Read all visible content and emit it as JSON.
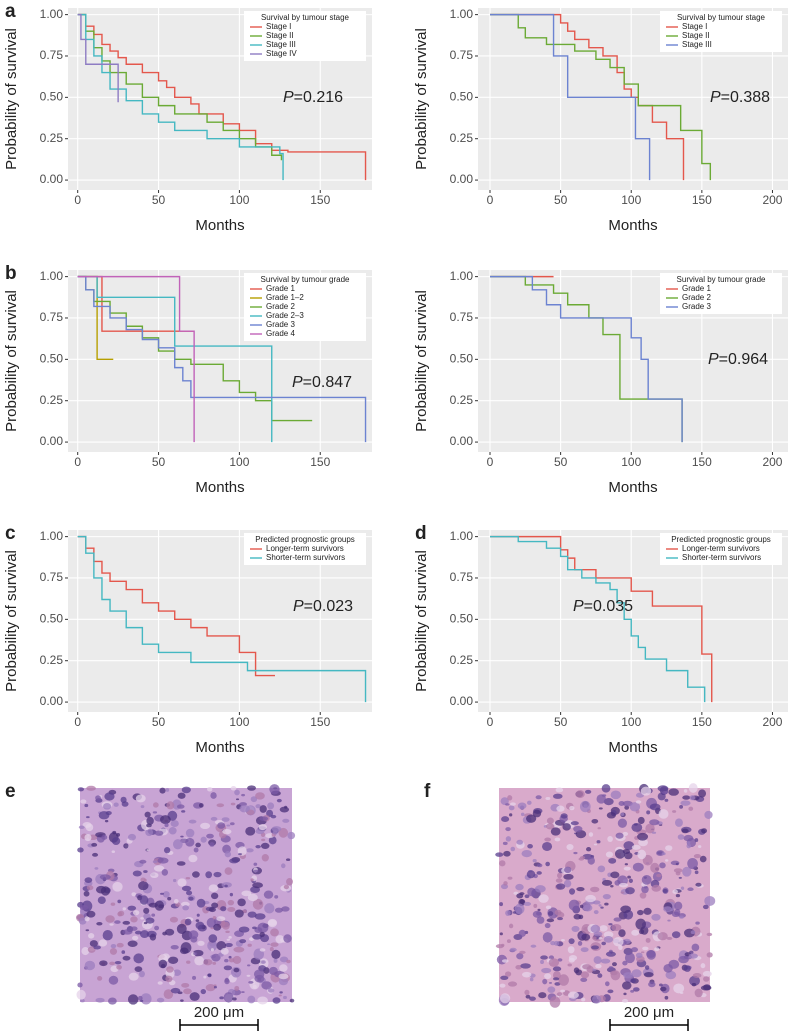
{
  "chart_data": [
    {
      "type": "line",
      "panel_label": "a",
      "legend_title": "Survival by tumour stage",
      "legend": "upper right",
      "x_label": "Months",
      "y_label": "Probability of survival",
      "annotation": {
        "symbol": "P",
        "text": "=0.216"
      },
      "xlim": [
        -6,
        182
      ],
      "ylim": [
        -0.06,
        1.04
      ],
      "xticks": [
        0,
        50,
        100,
        150
      ],
      "yticks": [
        {
          "value": 0,
          "label": "0.00"
        },
        {
          "value": 0.25,
          "label": "0.25"
        },
        {
          "value": 0.5,
          "label": "0.50"
        },
        {
          "value": 0.75,
          "label": "0.75"
        },
        {
          "value": 1,
          "label": "1.00"
        }
      ],
      "grid": true,
      "series": [
        {
          "name": "Stage I",
          "color": "#E4574C",
          "x": [
            0,
            5,
            10,
            15,
            20,
            25,
            30,
            40,
            50,
            55,
            60,
            70,
            75,
            90,
            100,
            110,
            120,
            130,
            178
          ],
          "values": [
            1,
            0.93,
            0.88,
            0.82,
            0.78,
            0.74,
            0.7,
            0.65,
            0.6,
            0.56,
            0.5,
            0.46,
            0.4,
            0.34,
            0.3,
            0.22,
            0.18,
            0.17,
            0
          ]
        },
        {
          "name": "Stage II",
          "color": "#6BAA35",
          "x": [
            0,
            5,
            10,
            15,
            20,
            30,
            40,
            50,
            60,
            70,
            80,
            90,
            100,
            110,
            120,
            126
          ],
          "values": [
            1,
            0.9,
            0.8,
            0.72,
            0.65,
            0.58,
            0.5,
            0.45,
            0.4,
            0.4,
            0.35,
            0.3,
            0.25,
            0.2,
            0.15,
            0.12
          ]
        },
        {
          "name": "Stage III",
          "color": "#45B8C2",
          "x": [
            0,
            5,
            10,
            15,
            20,
            30,
            40,
            50,
            60,
            70,
            80,
            100,
            110,
            125,
            127
          ],
          "values": [
            1,
            0.85,
            0.75,
            0.65,
            0.55,
            0.48,
            0.4,
            0.35,
            0.3,
            0.3,
            0.25,
            0.2,
            0.2,
            0.16,
            0
          ]
        },
        {
          "name": "Stage IV",
          "color": "#8E7CC3",
          "x": [
            0,
            2,
            5,
            20,
            25
          ],
          "values": [
            1,
            0.85,
            0.7,
            0.7,
            0.47
          ]
        }
      ]
    },
    {
      "type": "line",
      "legend_title": "Survival by tumour stage",
      "legend": "upper right",
      "x_label": "Months",
      "y_label": "Probability of survival",
      "annotation": {
        "symbol": "P",
        "text": "=0.388"
      },
      "xlim": [
        -8.5,
        211
      ],
      "ylim": [
        -0.06,
        1.04
      ],
      "xticks": [
        0,
        50,
        100,
        150,
        200
      ],
      "yticks": [
        {
          "value": 0,
          "label": "0.00"
        },
        {
          "value": 0.25,
          "label": "0.25"
        },
        {
          "value": 0.5,
          "label": "0.50"
        },
        {
          "value": 0.75,
          "label": "0.75"
        },
        {
          "value": 1,
          "label": "1.00"
        }
      ],
      "grid": true,
      "series": [
        {
          "name": "Stage I",
          "color": "#E4574C",
          "x": [
            0,
            50,
            55,
            60,
            70,
            80,
            90,
            95,
            100,
            105,
            115,
            125,
            137
          ],
          "values": [
            1,
            0.95,
            0.9,
            0.85,
            0.8,
            0.75,
            0.65,
            0.55,
            0.5,
            0.45,
            0.35,
            0.25,
            0
          ]
        },
        {
          "name": "Stage II",
          "color": "#6BAA35",
          "x": [
            0,
            20,
            25,
            35,
            40,
            50,
            60,
            75,
            85,
            95,
            105,
            125,
            135,
            150,
            156
          ],
          "values": [
            1,
            0.92,
            0.86,
            0.86,
            0.82,
            0.82,
            0.78,
            0.73,
            0.68,
            0.58,
            0.45,
            0.45,
            0.3,
            0.1,
            0
          ]
        },
        {
          "name": "Stage III",
          "color": "#6C83D1",
          "x": [
            0,
            45,
            55,
            100,
            103,
            113
          ],
          "values": [
            1,
            0.75,
            0.5,
            0.5,
            0.25,
            0
          ]
        }
      ]
    },
    {
      "type": "line",
      "panel_label": "b",
      "legend_title": "Survival by tumour grade",
      "legend": "upper right",
      "x_label": "Months",
      "y_label": "Probability of survival",
      "annotation": {
        "symbol": "P",
        "text": "=0.847"
      },
      "xlim": [
        -6,
        182
      ],
      "ylim": [
        -0.06,
        1.04
      ],
      "xticks": [
        0,
        50,
        100,
        150
      ],
      "yticks": [
        {
          "value": 0,
          "label": "0.00"
        },
        {
          "value": 0.25,
          "label": "0.25"
        },
        {
          "value": 0.5,
          "label": "0.50"
        },
        {
          "value": 0.75,
          "label": "0.75"
        },
        {
          "value": 1,
          "label": "1.00"
        }
      ],
      "grid": true,
      "series": [
        {
          "name": "Grade 1",
          "color": "#E4574C",
          "x": [
            0,
            15,
            72
          ],
          "values": [
            1,
            0.67,
            0.67
          ]
        },
        {
          "name": "Grade 1–2",
          "color": "#B79F00",
          "x": [
            0,
            12,
            22
          ],
          "values": [
            1,
            0.5,
            0.5
          ]
        },
        {
          "name": "Grade 2",
          "color": "#6BAA35",
          "x": [
            0,
            5,
            10,
            20,
            30,
            40,
            50,
            60,
            70,
            90,
            100,
            110,
            120,
            145
          ],
          "values": [
            1,
            0.92,
            0.85,
            0.78,
            0.7,
            0.63,
            0.55,
            0.5,
            0.47,
            0.37,
            0.3,
            0.25,
            0.13,
            0.13
          ]
        },
        {
          "name": "Grade 2–3",
          "color": "#45B8C2",
          "x": [
            0,
            12,
            20,
            60,
            120
          ],
          "values": [
            1,
            0.875,
            0.875,
            0.58,
            0
          ]
        },
        {
          "name": "Grade 3",
          "color": "#6C83D1",
          "x": [
            0,
            5,
            10,
            20,
            30,
            40,
            50,
            60,
            65,
            70,
            178
          ],
          "values": [
            1,
            0.92,
            0.82,
            0.75,
            0.68,
            0.62,
            0.57,
            0.45,
            0.37,
            0.27,
            0
          ]
        },
        {
          "name": "Grade 4",
          "color": "#C163B9",
          "x": [
            0,
            63,
            72
          ],
          "values": [
            1,
            0.67,
            0
          ]
        }
      ]
    },
    {
      "type": "line",
      "legend_title": "Survival by tumour grade",
      "legend": "upper right",
      "x_label": "Months",
      "y_label": "Probability of survival",
      "annotation": {
        "symbol": "P",
        "text": "=0.964"
      },
      "xlim": [
        -8.5,
        211
      ],
      "ylim": [
        -0.06,
        1.04
      ],
      "xticks": [
        0,
        50,
        100,
        150,
        200
      ],
      "yticks": [
        {
          "value": 0,
          "label": "0.00"
        },
        {
          "value": 0.25,
          "label": "0.25"
        },
        {
          "value": 0.5,
          "label": "0.50"
        },
        {
          "value": 0.75,
          "label": "0.75"
        },
        {
          "value": 1,
          "label": "1.00"
        }
      ],
      "grid": true,
      "series": [
        {
          "name": "Grade 1",
          "color": "#E4574C",
          "x": [
            0,
            45
          ],
          "values": [
            1,
            1
          ]
        },
        {
          "name": "Grade 2",
          "color": "#6BAA35",
          "x": [
            0,
            25,
            45,
            55,
            70,
            80,
            92,
            130,
            136
          ],
          "values": [
            1,
            0.95,
            0.9,
            0.83,
            0.75,
            0.65,
            0.26,
            0.26,
            0
          ]
        },
        {
          "name": "Grade 3",
          "color": "#6C83D1",
          "x": [
            0,
            30,
            40,
            50,
            80,
            100,
            107,
            112,
            136
          ],
          "values": [
            1,
            0.92,
            0.83,
            0.75,
            0.75,
            0.63,
            0.5,
            0.26,
            0
          ]
        }
      ]
    },
    {
      "type": "line",
      "panel_label": "c",
      "legend_title": "Predicted prognostic groups",
      "legend": "upper right",
      "x_label": "Months",
      "y_label": "Probability of survival",
      "annotation": {
        "symbol": "P",
        "text": "=0.023"
      },
      "xlim": [
        -6,
        182
      ],
      "ylim": [
        -0.06,
        1.04
      ],
      "xticks": [
        0,
        50,
        100,
        150
      ],
      "yticks": [
        {
          "value": 0,
          "label": "0.00"
        },
        {
          "value": 0.25,
          "label": "0.25"
        },
        {
          "value": 0.5,
          "label": "0.50"
        },
        {
          "value": 0.75,
          "label": "0.75"
        },
        {
          "value": 1,
          "label": "1.00"
        }
      ],
      "grid": true,
      "series": [
        {
          "name": "Longer-term survivors",
          "color": "#E4574C",
          "x": [
            0,
            5,
            10,
            15,
            20,
            30,
            40,
            50,
            60,
            70,
            80,
            100,
            110,
            122
          ],
          "values": [
            1,
            0.93,
            0.85,
            0.78,
            0.73,
            0.68,
            0.6,
            0.55,
            0.5,
            0.45,
            0.4,
            0.3,
            0.16,
            0.16
          ]
        },
        {
          "name": "Shorter-term survivors",
          "color": "#45B8C2",
          "x": [
            0,
            5,
            10,
            15,
            20,
            30,
            40,
            50,
            70,
            100,
            105,
            178
          ],
          "values": [
            1,
            0.9,
            0.75,
            0.62,
            0.55,
            0.45,
            0.35,
            0.3,
            0.24,
            0.24,
            0.19,
            0
          ]
        }
      ]
    },
    {
      "type": "line",
      "panel_label": "d",
      "legend_title": "Predicted prognostic groups",
      "legend": "upper right",
      "x_label": "Months",
      "y_label": "Probability of survival",
      "annotation": {
        "symbol": "P",
        "text": "=0.035"
      },
      "xlim": [
        -8.5,
        211
      ],
      "ylim": [
        -0.06,
        1.04
      ],
      "xticks": [
        0,
        50,
        100,
        150,
        200
      ],
      "yticks": [
        {
          "value": 0,
          "label": "0.00"
        },
        {
          "value": 0.25,
          "label": "0.25"
        },
        {
          "value": 0.5,
          "label": "0.50"
        },
        {
          "value": 0.75,
          "label": "0.75"
        },
        {
          "value": 1,
          "label": "1.00"
        }
      ],
      "grid": true,
      "series": [
        {
          "name": "Longer-term survivors",
          "color": "#E4574C",
          "x": [
            0,
            50,
            55,
            60,
            75,
            85,
            100,
            115,
            140,
            150,
            157
          ],
          "values": [
            1,
            0.92,
            0.87,
            0.8,
            0.75,
            0.75,
            0.67,
            0.58,
            0.58,
            0.29,
            0
          ]
        },
        {
          "name": "Shorter-term survivors",
          "color": "#45B8C2",
          "x": [
            0,
            20,
            40,
            50,
            55,
            65,
            75,
            85,
            90,
            95,
            100,
            105,
            110,
            125,
            140,
            152
          ],
          "values": [
            1,
            0.97,
            0.93,
            0.88,
            0.8,
            0.75,
            0.72,
            0.68,
            0.6,
            0.5,
            0.4,
            0.33,
            0.26,
            0.19,
            0.09,
            0
          ]
        }
      ]
    }
  ],
  "images": [
    {
      "panel_label": "e",
      "scale_bar": "200 μm"
    },
    {
      "panel_label": "f",
      "scale_bar": "200 μm"
    }
  ]
}
